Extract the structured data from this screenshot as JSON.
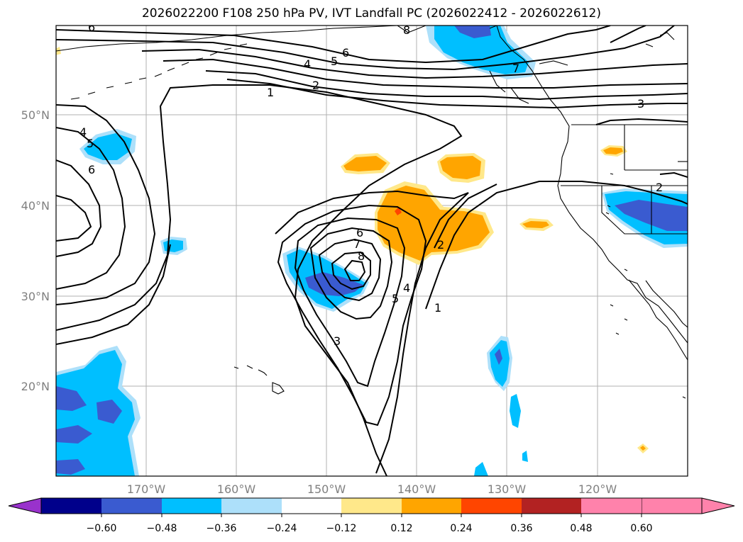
{
  "title": "2026022200 F108 250 hPa PV, IVT Landfall PC (2026022412 - 2026022612)",
  "lat_labels": [
    "50°N",
    "40°N",
    "30°N",
    "20°N"
  ],
  "lon_labels": [
    "170°W",
    "160°W",
    "150°W",
    "140°W",
    "130°W",
    "120°W"
  ],
  "colorbar": {
    "ticks": [
      "−0.60",
      "−0.48",
      "−0.36",
      "−0.24",
      "−0.12",
      "0.12",
      "0.24",
      "0.36",
      "0.48",
      "0.60"
    ],
    "colors": [
      "#9932cc",
      "#00008b",
      "#3a5bd0",
      "#00bfff",
      "#ade0fa",
      "#ffffff",
      "#ffe88a",
      "#ffa500",
      "#ff4500",
      "#b22222",
      "#ff82ab"
    ]
  },
  "contour_labels": [
    "6",
    "8",
    "6",
    "5",
    "4",
    "2",
    "1",
    "7",
    "3",
    "4",
    "5",
    "6",
    "6",
    "7",
    "8",
    "5",
    "4",
    "3",
    "2",
    "1",
    "2"
  ]
}
